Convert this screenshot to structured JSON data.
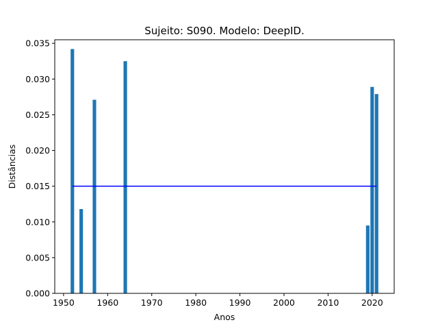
{
  "chart_data": {
    "type": "bar",
    "title": "Sujeito: S090. Modelo: DeepID.",
    "xlabel": "Anos",
    "ylabel": "Distâncias",
    "xlim": [
      1948,
      2025
    ],
    "ylim": [
      0,
      0.0355
    ],
    "xticks": [
      1950,
      1960,
      1970,
      1980,
      1990,
      2000,
      2010,
      2020
    ],
    "xtick_labels": [
      "1950",
      "1960",
      "1970",
      "1980",
      "1990",
      "2000",
      "2010",
      "2020"
    ],
    "yticks": [
      0,
      0.005,
      0.01,
      0.015,
      0.02,
      0.025,
      0.03,
      0.035
    ],
    "ytick_labels": [
      "0.000",
      "0.005",
      "0.010",
      "0.015",
      "0.020",
      "0.025",
      "0.030",
      "0.035"
    ],
    "bar_width_years": 0.8,
    "bar_color": "#1f77b4",
    "bars": [
      {
        "x": 1952,
        "y": 0.0342
      },
      {
        "x": 1954,
        "y": 0.0118
      },
      {
        "x": 1957,
        "y": 0.0271
      },
      {
        "x": 1964,
        "y": 0.0325
      },
      {
        "x": 2019,
        "y": 0.0095
      },
      {
        "x": 2020,
        "y": 0.0289
      },
      {
        "x": 2021,
        "y": 0.0279
      }
    ],
    "reference_line": {
      "x": [
        1952,
        2021
      ],
      "y": 0.015,
      "color": "#0000ff"
    },
    "grid": false,
    "legend": "none"
  }
}
